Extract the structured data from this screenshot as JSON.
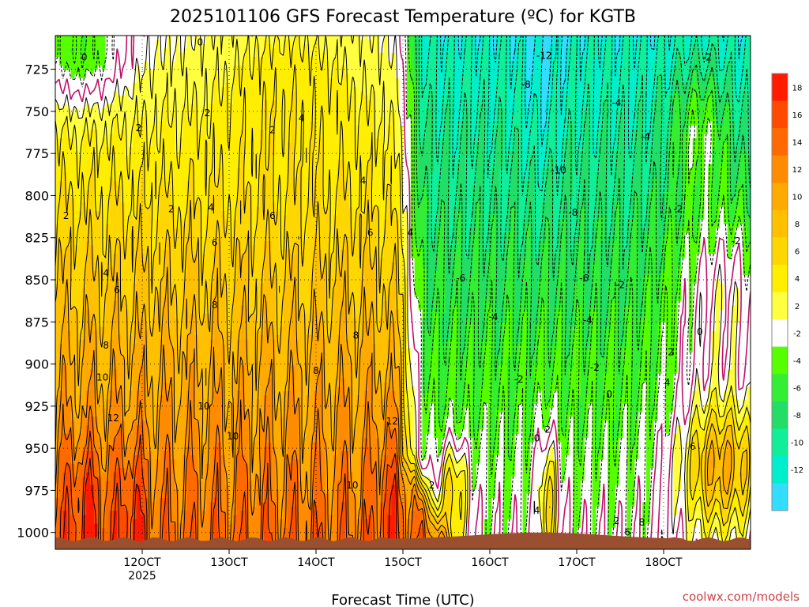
{
  "chart_data": {
    "type": "heatmap",
    "title": "2025101106 GFS Forecast Temperature (ºC) for KGTB",
    "xlabel": "Forecast Time (UTC)",
    "ylabel": "",
    "credit": "coolwx.com/models",
    "x_ticks": [
      {
        "label": "12OCT",
        "sublabel": "2025",
        "hour": 30
      },
      {
        "label": "13OCT",
        "sublabel": "",
        "hour": 54
      },
      {
        "label": "14OCT",
        "sublabel": "",
        "hour": 78
      },
      {
        "label": "15OCT",
        "sublabel": "",
        "hour": 102
      },
      {
        "label": "16OCT",
        "sublabel": "",
        "hour": 126
      },
      {
        "label": "17OCT",
        "sublabel": "",
        "hour": 150
      },
      {
        "label": "18OCT",
        "sublabel": "",
        "hour": 174
      }
    ],
    "xlim": [
      6,
      198
    ],
    "y_ticks": [
      725,
      750,
      775,
      800,
      825,
      850,
      875,
      900,
      925,
      950,
      975,
      1000
    ],
    "ylim": [
      1010,
      705
    ],
    "colorbar": {
      "levels": [
        18,
        16,
        14,
        12,
        10,
        8,
        6,
        4,
        2,
        -2,
        -4,
        -6,
        -8,
        -10,
        -12
      ],
      "colors": [
        "#ff1a00",
        "#ff4a00",
        "#ff6a00",
        "#ff8c00",
        "#ffaa00",
        "#ffc000",
        "#ffd700",
        "#ffee00",
        "#ffff40",
        "#ffffff",
        "#55ff00",
        "#33ee33",
        "#22dd66",
        "#11ee99",
        "#00eecc",
        "#33ddff"
      ]
    },
    "surface_color": "#9a5030",
    "freezing_line_color": "#c0106a",
    "contour_labels": [
      {
        "text": "0",
        "hour": 14,
        "p": 718
      },
      {
        "text": "0",
        "hour": 46,
        "p": 709
      },
      {
        "text": "2",
        "hour": 29,
        "p": 760
      },
      {
        "text": "2",
        "hour": 48,
        "p": 751
      },
      {
        "text": "2",
        "hour": 66,
        "p": 761
      },
      {
        "text": "2",
        "hour": 9,
        "p": 812
      },
      {
        "text": "2",
        "hour": 38,
        "p": 808
      },
      {
        "text": "4",
        "hour": 74,
        "p": 754
      },
      {
        "text": "4",
        "hour": 91,
        "p": 791
      },
      {
        "text": "4",
        "hour": 49,
        "p": 807
      },
      {
        "text": "4",
        "hour": 20,
        "p": 846
      },
      {
        "text": "4",
        "hour": 104,
        "p": 822
      },
      {
        "text": "6",
        "hour": 66,
        "p": 812
      },
      {
        "text": "6",
        "hour": 50,
        "p": 828
      },
      {
        "text": "6",
        "hour": 93,
        "p": 822
      },
      {
        "text": "6",
        "hour": 23,
        "p": 856
      },
      {
        "text": "8",
        "hour": 50,
        "p": 865
      },
      {
        "text": "8",
        "hour": 89,
        "p": 883
      },
      {
        "text": "8",
        "hour": 78,
        "p": 904
      },
      {
        "text": "8",
        "hour": 20,
        "p": 889
      },
      {
        "text": "10",
        "hour": 19,
        "p": 908
      },
      {
        "text": "10",
        "hour": 47,
        "p": 925
      },
      {
        "text": "10",
        "hour": 55,
        "p": 943
      },
      {
        "text": "10",
        "hour": 88,
        "p": 972
      },
      {
        "text": "12",
        "hour": 22,
        "p": 932
      },
      {
        "text": "12",
        "hour": 99,
        "p": 934
      },
      {
        "text": "2",
        "hour": 110,
        "p": 972
      },
      {
        "text": "-6",
        "hour": 118,
        "p": 849
      },
      {
        "text": "-4",
        "hour": 127,
        "p": 872
      },
      {
        "text": "-2",
        "hour": 134,
        "p": 909
      },
      {
        "text": "-12",
        "hour": 141,
        "p": 717
      },
      {
        "text": "-8",
        "hour": 136,
        "p": 734
      },
      {
        "text": "-10",
        "hour": 145,
        "p": 785
      },
      {
        "text": "-8",
        "hour": 149,
        "p": 810
      },
      {
        "text": "-6",
        "hour": 152,
        "p": 849
      },
      {
        "text": "-4",
        "hour": 153,
        "p": 874
      },
      {
        "text": "-2",
        "hour": 155,
        "p": 902
      },
      {
        "text": "-4",
        "hour": 161,
        "p": 745
      },
      {
        "text": "-4",
        "hour": 169,
        "p": 765
      },
      {
        "text": "-2",
        "hour": 186,
        "p": 718
      },
      {
        "text": "-2",
        "hour": 178,
        "p": 808
      },
      {
        "text": "-2",
        "hour": 194,
        "p": 827
      },
      {
        "text": "-2",
        "hour": 162,
        "p": 853
      },
      {
        "text": "0",
        "hour": 184,
        "p": 881
      },
      {
        "text": "0",
        "hour": 159,
        "p": 918
      },
      {
        "text": "0",
        "hour": 139,
        "p": 944
      },
      {
        "text": "2",
        "hour": 176,
        "p": 893
      },
      {
        "text": "2",
        "hour": 142,
        "p": 939
      },
      {
        "text": "2",
        "hour": 161,
        "p": 993
      },
      {
        "text": "4",
        "hour": 175,
        "p": 911
      },
      {
        "text": "4",
        "hour": 139,
        "p": 987
      },
      {
        "text": "6",
        "hour": 182,
        "p": 949
      },
      {
        "text": "6",
        "hour": 164,
        "p": 1000
      },
      {
        "text": "8",
        "hour": 168,
        "p": 994
      }
    ]
  }
}
